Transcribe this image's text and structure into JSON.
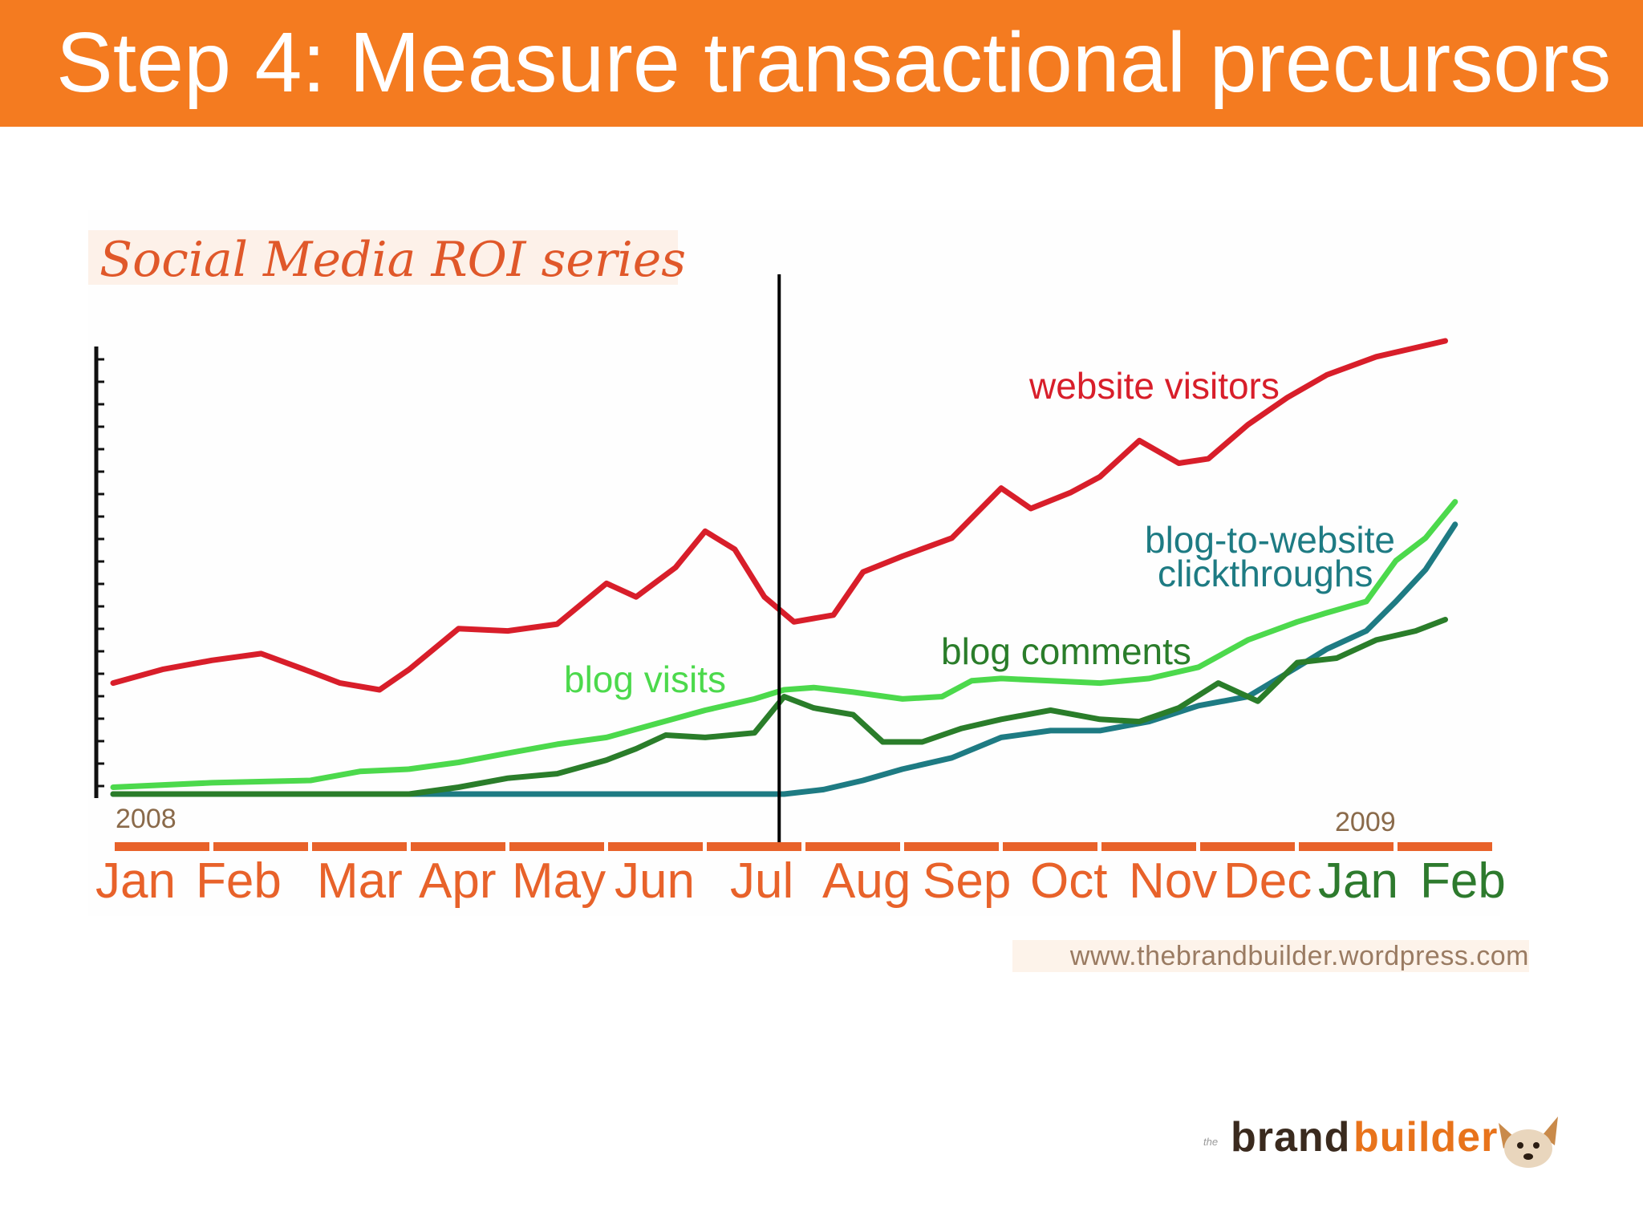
{
  "slide": {
    "title": "Step 4: Measure transactional precursors"
  },
  "footer": {
    "url": "www.thebrandbuilder.wordpress.com"
  },
  "logo": {
    "prefix": "the",
    "word1": "brand",
    "word2": "builder"
  },
  "chart_data": {
    "type": "line",
    "title": "Social Media ROI series",
    "xlabel": "",
    "ylabel": "",
    "year_labels": {
      "start": "2008",
      "end": "2009"
    },
    "categories": [
      "Jan",
      "Feb",
      "Mar",
      "Apr",
      "May",
      "Jun",
      "Jul",
      "Aug",
      "Sep",
      "Oct",
      "Nov",
      "Dec",
      "Jan",
      "Feb"
    ],
    "x_range": [
      0,
      14
    ],
    "ylim": [
      0,
      20
    ],
    "grid": false,
    "legend": "inline labels",
    "marker_x": 6.75,
    "colors": {
      "title": "#e0582a",
      "month_labels_2008": "#e8622a",
      "month_labels_2009": "#2d7a2d",
      "axis_bar": "#e8622a",
      "marker_line": "#000000"
    },
    "series": [
      {
        "name": "website visitors",
        "color": "#d81e2a",
        "points": [
          [
            0,
            4.9
          ],
          [
            0.5,
            5.5
          ],
          [
            1,
            5.9
          ],
          [
            1.5,
            6.2
          ],
          [
            2,
            5.4
          ],
          [
            2.3,
            4.9
          ],
          [
            2.7,
            4.6
          ],
          [
            3,
            5.5
          ],
          [
            3.5,
            7.3
          ],
          [
            4,
            7.2
          ],
          [
            4.5,
            7.5
          ],
          [
            5,
            9.3
          ],
          [
            5.3,
            8.7
          ],
          [
            5.7,
            10
          ],
          [
            6,
            11.6
          ],
          [
            6.3,
            10.8
          ],
          [
            6.6,
            8.7
          ],
          [
            6.9,
            7.6
          ],
          [
            7.3,
            7.9
          ],
          [
            7.6,
            9.8
          ],
          [
            8,
            10.5
          ],
          [
            8.5,
            11.3
          ],
          [
            9,
            13.5
          ],
          [
            9.3,
            12.6
          ],
          [
            9.7,
            13.3
          ],
          [
            10,
            14
          ],
          [
            10.4,
            15.6
          ],
          [
            10.8,
            14.6
          ],
          [
            11.1,
            14.8
          ],
          [
            11.5,
            16.3
          ],
          [
            11.9,
            17.5
          ],
          [
            12.3,
            18.5
          ],
          [
            12.8,
            19.3
          ],
          [
            13.2,
            19.7
          ],
          [
            13.5,
            20
          ]
        ]
      },
      {
        "name": "blog visits",
        "color": "#4cd94c",
        "points": [
          [
            0,
            0.3
          ],
          [
            1,
            0.5
          ],
          [
            2,
            0.6
          ],
          [
            2.5,
            1
          ],
          [
            3,
            1.1
          ],
          [
            3.5,
            1.4
          ],
          [
            4,
            1.8
          ],
          [
            4.5,
            2.2
          ],
          [
            5,
            2.5
          ],
          [
            5.5,
            3.1
          ],
          [
            6,
            3.7
          ],
          [
            6.5,
            4.2
          ],
          [
            6.8,
            4.6
          ],
          [
            7.1,
            4.7
          ],
          [
            7.5,
            4.5
          ],
          [
            8,
            4.2
          ],
          [
            8.4,
            4.3
          ],
          [
            8.7,
            5
          ],
          [
            9,
            5.1
          ],
          [
            9.5,
            5
          ],
          [
            10,
            4.9
          ],
          [
            10.5,
            5.1
          ],
          [
            11,
            5.6
          ],
          [
            11.5,
            6.8
          ],
          [
            12,
            7.6
          ],
          [
            12.3,
            8
          ],
          [
            12.7,
            8.5
          ],
          [
            13,
            10.3
          ],
          [
            13.3,
            11.3
          ],
          [
            13.6,
            12.9
          ]
        ]
      },
      {
        "name": "blog comments",
        "color": "#2a7d2a",
        "points": [
          [
            0,
            0
          ],
          [
            3,
            0
          ],
          [
            3.5,
            0.3
          ],
          [
            4,
            0.7
          ],
          [
            4.5,
            0.9
          ],
          [
            5,
            1.5
          ],
          [
            5.3,
            2
          ],
          [
            5.6,
            2.6
          ],
          [
            6,
            2.5
          ],
          [
            6.5,
            2.7
          ],
          [
            6.8,
            4.3
          ],
          [
            7.1,
            3.8
          ],
          [
            7.5,
            3.5
          ],
          [
            7.8,
            2.3
          ],
          [
            8.2,
            2.3
          ],
          [
            8.6,
            2.9
          ],
          [
            9,
            3.3
          ],
          [
            9.5,
            3.7
          ],
          [
            10,
            3.3
          ],
          [
            10.4,
            3.2
          ],
          [
            10.8,
            3.8
          ],
          [
            11.2,
            4.9
          ],
          [
            11.6,
            4.1
          ],
          [
            12,
            5.8
          ],
          [
            12.4,
            6
          ],
          [
            12.8,
            6.8
          ],
          [
            13.2,
            7.2
          ],
          [
            13.5,
            7.7
          ]
        ]
      },
      {
        "name": "blog-to-website clickthroughs",
        "color": "#1e7b83",
        "points": [
          [
            0,
            0
          ],
          [
            6.8,
            0
          ],
          [
            7.2,
            0.2
          ],
          [
            7.6,
            0.6
          ],
          [
            8,
            1.1
          ],
          [
            8.5,
            1.6
          ],
          [
            9,
            2.5
          ],
          [
            9.5,
            2.8
          ],
          [
            10,
            2.8
          ],
          [
            10.5,
            3.2
          ],
          [
            11,
            3.9
          ],
          [
            11.5,
            4.3
          ],
          [
            12,
            5.6
          ],
          [
            12.3,
            6.4
          ],
          [
            12.7,
            7.2
          ],
          [
            13,
            8.5
          ],
          [
            13.3,
            9.9
          ],
          [
            13.6,
            11.9
          ]
        ]
      }
    ]
  }
}
